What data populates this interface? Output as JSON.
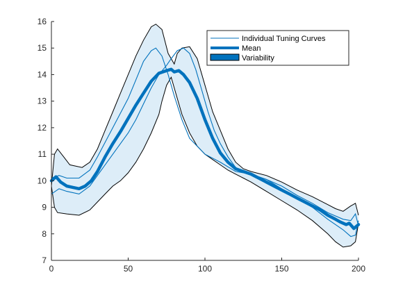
{
  "chart_data": {
    "type": "line",
    "title": "",
    "xlabel": "",
    "ylabel": "",
    "xlim": [
      0,
      200
    ],
    "ylim": [
      7,
      16
    ],
    "x_ticks": [
      "0",
      "50",
      "100",
      "150",
      "200"
    ],
    "y_ticks": [
      "7",
      "8",
      "9",
      "10",
      "11",
      "12",
      "13",
      "14",
      "15",
      "16"
    ],
    "grid": false,
    "legend_position": "top-right",
    "legend": {
      "individual": "Individual Tuning Curves",
      "mean": "Mean",
      "variability": "Variability"
    },
    "colors": {
      "line": "#0072bd",
      "band_fill": "#ddedf8",
      "band_edge": "#000000",
      "axis": "#262626"
    },
    "series": [
      {
        "role": "band_upper",
        "x": [
          0,
          2,
          4,
          8,
          12,
          20,
          25,
          30,
          35,
          40,
          45,
          50,
          55,
          60,
          65,
          68,
          72,
          76,
          80,
          82,
          85,
          90,
          95,
          100,
          105,
          110,
          115,
          120,
          125,
          130,
          140,
          150,
          160,
          170,
          180,
          185,
          190,
          195,
          198,
          200
        ],
        "y": [
          9.8,
          11.0,
          11.2,
          10.9,
          10.6,
          10.5,
          10.7,
          11.2,
          11.9,
          12.6,
          13.3,
          14.0,
          14.7,
          15.3,
          15.8,
          15.9,
          15.7,
          14.8,
          14.4,
          14.8,
          15.0,
          15.05,
          14.6,
          13.6,
          12.6,
          11.9,
          11.2,
          10.7,
          10.45,
          10.35,
          10.2,
          9.95,
          9.65,
          9.4,
          9.1,
          8.95,
          8.85,
          9.05,
          9.15,
          8.7
        ]
      },
      {
        "role": "band_lower",
        "x": [
          0,
          2,
          4,
          10,
          18,
          25,
          30,
          35,
          40,
          45,
          50,
          55,
          60,
          65,
          70,
          72,
          75,
          78,
          82,
          85,
          90,
          95,
          100,
          105,
          110,
          115,
          120,
          125,
          130,
          140,
          150,
          160,
          170,
          180,
          185,
          190,
          195,
          198,
          200
        ],
        "y": [
          9.8,
          9.0,
          8.8,
          8.75,
          8.7,
          8.9,
          9.2,
          9.5,
          9.8,
          10.0,
          10.3,
          10.7,
          11.2,
          11.8,
          12.5,
          13.0,
          13.6,
          13.9,
          13.1,
          12.5,
          11.8,
          11.3,
          11.0,
          10.8,
          10.6,
          10.4,
          10.25,
          10.1,
          9.95,
          9.6,
          9.25,
          8.9,
          8.5,
          8.0,
          7.7,
          7.5,
          7.55,
          7.7,
          8.4
        ]
      },
      {
        "role": "individual",
        "x": [
          0,
          5,
          10,
          18,
          25,
          30,
          40,
          50,
          55,
          60,
          65,
          68,
          72,
          76,
          80,
          85,
          90,
          95,
          100,
          110,
          120,
          130,
          140,
          150,
          160,
          170,
          180,
          190,
          195,
          198,
          200
        ],
        "y": [
          10.1,
          10.2,
          10.1,
          10.1,
          10.4,
          10.9,
          12.0,
          13.1,
          13.8,
          14.5,
          14.9,
          15.0,
          14.7,
          14.0,
          13.2,
          12.3,
          11.6,
          11.3,
          11.0,
          10.7,
          10.35,
          10.25,
          10.05,
          9.8,
          9.45,
          9.15,
          8.8,
          8.55,
          8.5,
          8.75,
          8.3
        ]
      },
      {
        "role": "individual",
        "x": [
          0,
          5,
          10,
          18,
          25,
          30,
          40,
          50,
          55,
          60,
          65,
          70,
          75,
          78,
          82,
          86,
          90,
          94,
          98,
          102,
          106,
          110,
          115,
          120,
          125,
          130,
          140,
          150,
          160,
          170,
          180,
          190,
          195,
          198,
          200
        ],
        "y": [
          9.5,
          9.7,
          9.6,
          9.5,
          9.8,
          10.2,
          11.0,
          11.8,
          12.3,
          12.9,
          13.5,
          14.0,
          14.35,
          14.6,
          14.9,
          15.0,
          14.8,
          14.2,
          13.4,
          12.6,
          11.9,
          11.4,
          10.9,
          10.5,
          10.35,
          10.25,
          10.05,
          9.7,
          9.35,
          9.0,
          8.55,
          8.15,
          7.9,
          7.95,
          8.5
        ]
      },
      {
        "role": "mean",
        "x": [
          0,
          3,
          6,
          10,
          14,
          18,
          22,
          26,
          30,
          35,
          40,
          45,
          50,
          55,
          60,
          65,
          70,
          75,
          78,
          80,
          83,
          86,
          90,
          95,
          100,
          105,
          110,
          115,
          120,
          125,
          130,
          135,
          140,
          145,
          150,
          155,
          160,
          165,
          170,
          175,
          180,
          185,
          188,
          192,
          194,
          197,
          200
        ],
        "y": [
          10.0,
          10.15,
          9.95,
          9.8,
          9.75,
          9.7,
          9.8,
          10.0,
          10.35,
          10.9,
          11.4,
          11.85,
          12.35,
          12.85,
          13.3,
          13.75,
          14.05,
          14.15,
          14.2,
          14.1,
          14.15,
          14.0,
          13.7,
          13.1,
          12.3,
          11.6,
          11.05,
          10.7,
          10.45,
          10.35,
          10.25,
          10.1,
          9.95,
          9.8,
          9.65,
          9.5,
          9.35,
          9.2,
          9.05,
          8.9,
          8.7,
          8.55,
          8.45,
          8.35,
          8.4,
          8.2,
          8.35
        ]
      }
    ]
  }
}
